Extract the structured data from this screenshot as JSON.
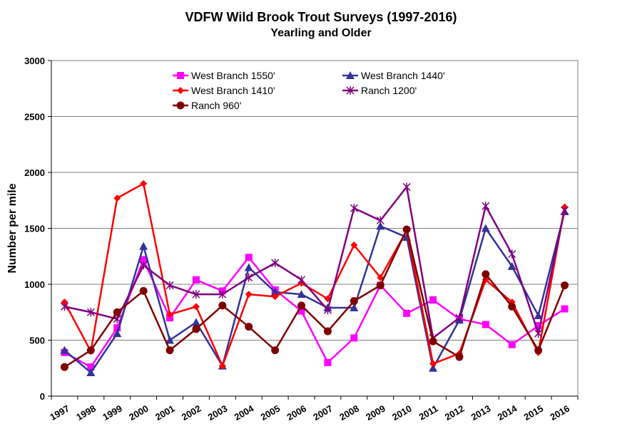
{
  "chart_data": {
    "type": "line",
    "title": "VDFW Wild Brook Trout Surveys (1997-2016)",
    "subtitle": "Yearling and Older",
    "xlabel": "",
    "ylabel": "Number per mile",
    "ylim": [
      0,
      3000
    ],
    "yticks": [
      0,
      500,
      1000,
      1500,
      2000,
      2500,
      3000
    ],
    "grid": "horizontal",
    "legend_position": "top",
    "categories": [
      "1997",
      "1998",
      "1999",
      "2000",
      "2001",
      "2002",
      "2003",
      "2004",
      "2005",
      "2006",
      "2007",
      "2008",
      "2009",
      "2010",
      "2011",
      "2012",
      "2013",
      "2014",
      "2015",
      "2016"
    ],
    "series": [
      {
        "name": "West Branch 1550'",
        "color": "#FF00FF",
        "marker": "square",
        "values": [
          390,
          260,
          610,
          1220,
          700,
          1040,
          940,
          1240,
          950,
          760,
          300,
          520,
          990,
          740,
          860,
          690,
          640,
          460,
          630,
          780
        ]
      },
      {
        "name": "West Branch 1440'",
        "color": "#333399",
        "marker": "triangle",
        "values": [
          410,
          210,
          560,
          1340,
          500,
          660,
          270,
          1150,
          930,
          910,
          790,
          790,
          1520,
          1420,
          250,
          680,
          1500,
          1160,
          720,
          1650
        ]
      },
      {
        "name": "West Branch 1410'",
        "color": "#FF0000",
        "marker": "diamond",
        "values": [
          840,
          400,
          1770,
          1900,
          730,
          800,
          270,
          910,
          890,
          1010,
          870,
          1350,
          1060,
          1480,
          290,
          380,
          1040,
          840,
          390,
          1690
        ]
      },
      {
        "name": "Ranch 1200'",
        "color": "#800080",
        "marker": "star",
        "values": [
          800,
          750,
          690,
          1170,
          990,
          910,
          910,
          1060,
          1190,
          1040,
          770,
          1680,
          1570,
          1870,
          520,
          700,
          1700,
          1270,
          560,
          1660
        ]
      },
      {
        "name": "Ranch 960'",
        "color": "#800000",
        "marker": "circle",
        "values": [
          260,
          410,
          750,
          940,
          410,
          600,
          810,
          620,
          410,
          810,
          580,
          850,
          990,
          1490,
          490,
          350,
          1090,
          800,
          410,
          990
        ]
      }
    ]
  }
}
